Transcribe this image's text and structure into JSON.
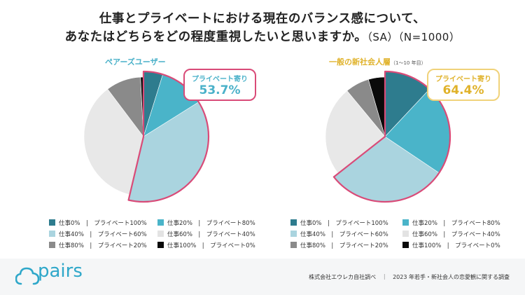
{
  "title_line1": "仕事とプライベートにおける現在のバランス感について、",
  "title_line2": "あなたはどちらをどの程度重視したいと思いますか。",
  "title_line2_sub": "（SA）（N=1000）",
  "colors": {
    "accent_pink": "#d94b78",
    "pairs_blue": "#4ab1c9",
    "young_yellow": "#e0b22a",
    "series": [
      "#2e7c8e",
      "#4ab4c9",
      "#aad4df",
      "#e8e8e8",
      "#8a8a8a",
      "#0a0a0a"
    ]
  },
  "chart_data": [
    {
      "type": "pie",
      "title": "ペアーズユーザー",
      "categories": [
        "仕事0%｜プライベート100%",
        "仕事20%｜プライベート80%",
        "仕事40%｜プライベート60%",
        "仕事60%｜プライベート40%",
        "仕事80%｜プライベート20%",
        "仕事100%｜プライベート0%"
      ],
      "values": [
        4.8,
        11.3,
        37.6,
        36.0,
        9.5,
        0.8
      ],
      "highlight": {
        "label": "プライベート寄り",
        "value": "53.7%"
      }
    },
    {
      "type": "pie",
      "title": "一般の新社会人層",
      "subtitle": "（1〜10 年目）",
      "categories": [
        "仕事0%｜プライベート100%",
        "仕事20%｜プライベート80%",
        "仕事40%｜プライベート60%",
        "仕事60%｜プライベート40%",
        "仕事80%｜プライベート20%",
        "仕事100%｜プライベート0%"
      ],
      "values": [
        12.0,
        22.4,
        30.0,
        24.6,
        6.5,
        4.5
      ],
      "highlight": {
        "label": "プライベート寄り",
        "value": "64.4%"
      }
    }
  ],
  "legend_items": [
    {
      "work": "仕事0%",
      "private": "プライベート100%"
    },
    {
      "work": "仕事20%",
      "private": "プライベート80%"
    },
    {
      "work": "仕事40%",
      "private": "プライベート60%"
    },
    {
      "work": "仕事60%",
      "private": "プライベート40%"
    },
    {
      "work": "仕事80%",
      "private": "プライベート20%"
    },
    {
      "work": "仕事100%",
      "private": "プライベート0%"
    }
  ],
  "footer": {
    "logo": "pairs",
    "credit": "株式会社エウレカ自社調べ　｜　2023 年若手・新社会人の恋愛観に関する調査"
  }
}
